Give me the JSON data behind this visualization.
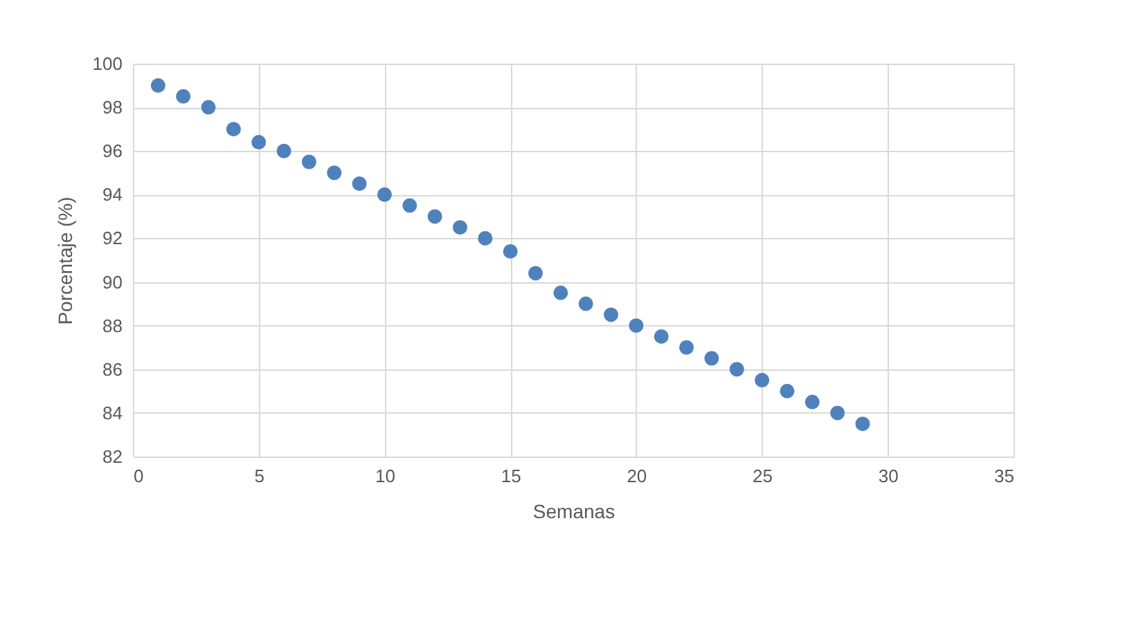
{
  "chart_data": {
    "type": "scatter",
    "xlabel": "Semanas",
    "ylabel": "Porcentaje (%)",
    "x": [
      1,
      2,
      3,
      4,
      5,
      6,
      7,
      8,
      9,
      10,
      11,
      12,
      13,
      14,
      15,
      16,
      17,
      18,
      19,
      20,
      21,
      22,
      23,
      24,
      25,
      26,
      27,
      28,
      29
    ],
    "series": [
      {
        "color": "#4f81bd",
        "values": [
          99.0,
          98.5,
          98.0,
          97.0,
          96.4,
          96.0,
          95.5,
          95.0,
          94.5,
          94.0,
          93.5,
          93.0,
          92.5,
          92.0,
          91.4,
          90.4,
          89.5,
          89.0,
          88.5,
          88.0,
          87.5,
          87.0,
          86.5,
          86.0,
          85.5,
          85.0,
          84.5,
          84.0,
          83.5
        ]
      }
    ],
    "xlim": [
      0,
      35
    ],
    "xticks": [
      0,
      5,
      10,
      15,
      20,
      25,
      30,
      35
    ],
    "ylim": [
      82,
      100
    ],
    "yticks": [
      82,
      84,
      86,
      88,
      90,
      92,
      94,
      96,
      98,
      100
    ],
    "grid": true,
    "marker": "circle",
    "legend": false
  }
}
